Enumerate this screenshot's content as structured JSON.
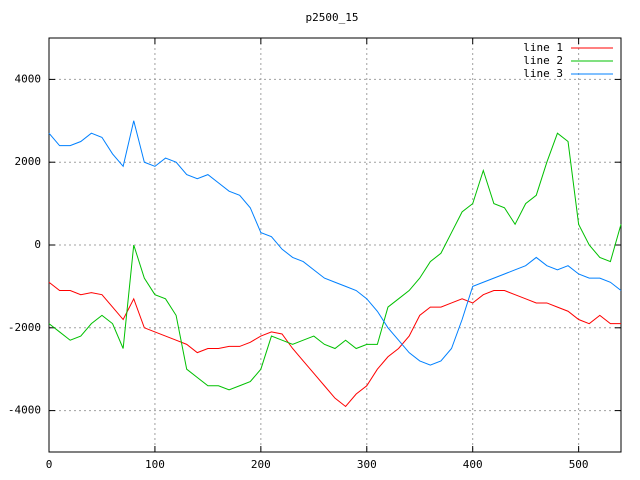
{
  "chart_data": {
    "type": "line",
    "title": "p2500_15",
    "x": [
      0,
      10,
      20,
      30,
      40,
      50,
      60,
      70,
      80,
      90,
      100,
      110,
      120,
      130,
      140,
      150,
      160,
      170,
      180,
      190,
      200,
      210,
      220,
      230,
      240,
      250,
      260,
      270,
      280,
      290,
      300,
      310,
      320,
      330,
      340,
      350,
      360,
      370,
      380,
      390,
      400,
      410,
      420,
      430,
      440,
      450,
      460,
      470,
      480,
      490,
      500,
      510,
      520,
      530,
      540
    ],
    "series": [
      {
        "name": "line 1",
        "color": "#ff0000",
        "values": [
          -900,
          -1100,
          -1100,
          -1200,
          -1150,
          -1200,
          -1500,
          -1800,
          -1300,
          -2000,
          -2100,
          -2200,
          -2300,
          -2400,
          -2600,
          -2500,
          -2500,
          -2450,
          -2450,
          -2350,
          -2200,
          -2100,
          -2150,
          -2500,
          -2800,
          -3100,
          -3400,
          -3700,
          -3900,
          -3600,
          -3400,
          -3000,
          -2700,
          -2500,
          -2200,
          -1700,
          -1500,
          -1500,
          -1400,
          -1300,
          -1400,
          -1200,
          -1100,
          -1100,
          -1200,
          -1300,
          -1400,
          -1400,
          -1500,
          -1600,
          -1800,
          -1900,
          -1700,
          -1900,
          -1900
        ]
      },
      {
        "name": "line 2",
        "color": "#00c000",
        "values": [
          -1900,
          -2100,
          -2300,
          -2200,
          -1900,
          -1700,
          -1900,
          -2500,
          0,
          -800,
          -1200,
          -1300,
          -1700,
          -3000,
          -3200,
          -3400,
          -3400,
          -3500,
          -3400,
          -3300,
          -3000,
          -2200,
          -2300,
          -2400,
          -2300,
          -2200,
          -2400,
          -2500,
          -2300,
          -2500,
          -2400,
          -2400,
          -1500,
          -1300,
          -1100,
          -800,
          -400,
          -200,
          300,
          800,
          1000,
          1800,
          1000,
          900,
          500,
          1000,
          1200,
          2000,
          2700,
          2500,
          500,
          0,
          -300,
          -400,
          500
        ]
      },
      {
        "name": "line 3",
        "color": "#0080ff",
        "values": [
          2700,
          2400,
          2400,
          2500,
          2700,
          2600,
          2200,
          1900,
          3000,
          2000,
          1900,
          2100,
          2000,
          1700,
          1600,
          1700,
          1500,
          1300,
          1200,
          900,
          300,
          200,
          -100,
          -300,
          -400,
          -600,
          -800,
          -900,
          -1000,
          -1100,
          -1300,
          -1600,
          -2000,
          -2300,
          -2600,
          -2800,
          -2900,
          -2800,
          -2500,
          -1800,
          -1000,
          -900,
          -800,
          -700,
          -600,
          -500,
          -300,
          -500,
          -600,
          -500,
          -700,
          -800,
          -800,
          -900,
          -1100
        ]
      }
    ],
    "xlim": [
      0,
      540
    ],
    "ylim": [
      -5000,
      5000
    ],
    "xticks": [
      0,
      100,
      200,
      300,
      400,
      500
    ],
    "yticks": [
      -4000,
      -2000,
      0,
      2000,
      4000
    ],
    "grid": true,
    "legend": "top-right"
  }
}
